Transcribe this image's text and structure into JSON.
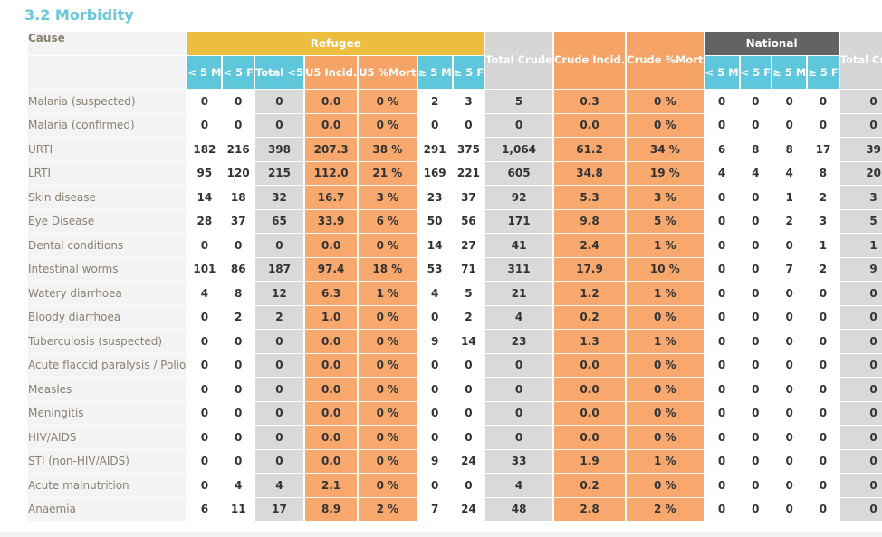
{
  "section_title": "3.2 Morbidity",
  "headers": {
    "cause": "Cause",
    "refugee": "Refugee",
    "national": "National",
    "refugee_sub": [
      "< 5 M",
      "< 5 F",
      "Total <5",
      "U5 Incid.",
      "U5 %Mort",
      "≥ 5 M",
      "≥ 5 F"
    ],
    "total_crude": "Total Crude",
    "crude_incid": "Crude Incid.",
    "crude_mort": "Crude %Mort",
    "national_sub": [
      "< 5 M",
      "< 5 F",
      "≥ 5 M",
      "≥ 5 F"
    ],
    "national_total": "Total Crude"
  },
  "colors": {
    "title": "#6cc5da",
    "refugee_group": "#ecbd3f",
    "national_group": "#636363",
    "sub_header": "#5ec7dc",
    "rate_header": "#f5a367",
    "total_header": "#d6d6d6",
    "rate_cell": "#f8a86d",
    "total_cell": "#d9d9d9"
  },
  "rows": [
    {
      "cause": "Malaria (suspected)",
      "r_u5m": "0",
      "r_u5f": "0",
      "r_tot5": "0",
      "r_u5inc": "0.0",
      "r_u5mort": "0 %",
      "r_o5m": "2",
      "r_o5f": "3",
      "tot_crude": "5",
      "crude_inc": "0.3",
      "crude_mort": "0 %",
      "n_u5m": "0",
      "n_u5f": "0",
      "n_o5m": "0",
      "n_o5f": "0",
      "n_tot": "0"
    },
    {
      "cause": "Malaria (confirmed)",
      "r_u5m": "0",
      "r_u5f": "0",
      "r_tot5": "0",
      "r_u5inc": "0.0",
      "r_u5mort": "0 %",
      "r_o5m": "0",
      "r_o5f": "0",
      "tot_crude": "0",
      "crude_inc": "0.0",
      "crude_mort": "0 %",
      "n_u5m": "0",
      "n_u5f": "0",
      "n_o5m": "0",
      "n_o5f": "0",
      "n_tot": "0"
    },
    {
      "cause": "URTI",
      "r_u5m": "182",
      "r_u5f": "216",
      "r_tot5": "398",
      "r_u5inc": "207.3",
      "r_u5mort": "38 %",
      "r_o5m": "291",
      "r_o5f": "375",
      "tot_crude": "1,064",
      "crude_inc": "61.2",
      "crude_mort": "34 %",
      "n_u5m": "6",
      "n_u5f": "8",
      "n_o5m": "8",
      "n_o5f": "17",
      "n_tot": "39"
    },
    {
      "cause": "LRTI",
      "r_u5m": "95",
      "r_u5f": "120",
      "r_tot5": "215",
      "r_u5inc": "112.0",
      "r_u5mort": "21 %",
      "r_o5m": "169",
      "r_o5f": "221",
      "tot_crude": "605",
      "crude_inc": "34.8",
      "crude_mort": "19 %",
      "n_u5m": "4",
      "n_u5f": "4",
      "n_o5m": "4",
      "n_o5f": "8",
      "n_tot": "20"
    },
    {
      "cause": "Skin disease",
      "r_u5m": "14",
      "r_u5f": "18",
      "r_tot5": "32",
      "r_u5inc": "16.7",
      "r_u5mort": "3 %",
      "r_o5m": "23",
      "r_o5f": "37",
      "tot_crude": "92",
      "crude_inc": "5.3",
      "crude_mort": "3 %",
      "n_u5m": "0",
      "n_u5f": "0",
      "n_o5m": "1",
      "n_o5f": "2",
      "n_tot": "3"
    },
    {
      "cause": "Eye Disease",
      "r_u5m": "28",
      "r_u5f": "37",
      "r_tot5": "65",
      "r_u5inc": "33.9",
      "r_u5mort": "6 %",
      "r_o5m": "50",
      "r_o5f": "56",
      "tot_crude": "171",
      "crude_inc": "9.8",
      "crude_mort": "5 %",
      "n_u5m": "0",
      "n_u5f": "0",
      "n_o5m": "2",
      "n_o5f": "3",
      "n_tot": "5"
    },
    {
      "cause": "Dental conditions",
      "r_u5m": "0",
      "r_u5f": "0",
      "r_tot5": "0",
      "r_u5inc": "0.0",
      "r_u5mort": "0 %",
      "r_o5m": "14",
      "r_o5f": "27",
      "tot_crude": "41",
      "crude_inc": "2.4",
      "crude_mort": "1 %",
      "n_u5m": "0",
      "n_u5f": "0",
      "n_o5m": "0",
      "n_o5f": "1",
      "n_tot": "1"
    },
    {
      "cause": "Intestinal worms",
      "r_u5m": "101",
      "r_u5f": "86",
      "r_tot5": "187",
      "r_u5inc": "97.4",
      "r_u5mort": "18 %",
      "r_o5m": "53",
      "r_o5f": "71",
      "tot_crude": "311",
      "crude_inc": "17.9",
      "crude_mort": "10 %",
      "n_u5m": "0",
      "n_u5f": "0",
      "n_o5m": "7",
      "n_o5f": "2",
      "n_tot": "9"
    },
    {
      "cause": "Watery diarrhoea",
      "r_u5m": "4",
      "r_u5f": "8",
      "r_tot5": "12",
      "r_u5inc": "6.3",
      "r_u5mort": "1 %",
      "r_o5m": "4",
      "r_o5f": "5",
      "tot_crude": "21",
      "crude_inc": "1.2",
      "crude_mort": "1 %",
      "n_u5m": "0",
      "n_u5f": "0",
      "n_o5m": "0",
      "n_o5f": "0",
      "n_tot": "0"
    },
    {
      "cause": "Bloody diarrhoea",
      "r_u5m": "0",
      "r_u5f": "2",
      "r_tot5": "2",
      "r_u5inc": "1.0",
      "r_u5mort": "0 %",
      "r_o5m": "0",
      "r_o5f": "2",
      "tot_crude": "4",
      "crude_inc": "0.2",
      "crude_mort": "0 %",
      "n_u5m": "0",
      "n_u5f": "0",
      "n_o5m": "0",
      "n_o5f": "0",
      "n_tot": "0"
    },
    {
      "cause": "Tuberculosis (suspected)",
      "r_u5m": "0",
      "r_u5f": "0",
      "r_tot5": "0",
      "r_u5inc": "0.0",
      "r_u5mort": "0 %",
      "r_o5m": "9",
      "r_o5f": "14",
      "tot_crude": "23",
      "crude_inc": "1.3",
      "crude_mort": "1 %",
      "n_u5m": "0",
      "n_u5f": "0",
      "n_o5m": "0",
      "n_o5f": "0",
      "n_tot": "0"
    },
    {
      "cause": "Acute flaccid paralysis / Polio",
      "r_u5m": "0",
      "r_u5f": "0",
      "r_tot5": "0",
      "r_u5inc": "0.0",
      "r_u5mort": "0 %",
      "r_o5m": "0",
      "r_o5f": "0",
      "tot_crude": "0",
      "crude_inc": "0.0",
      "crude_mort": "0 %",
      "n_u5m": "0",
      "n_u5f": "0",
      "n_o5m": "0",
      "n_o5f": "0",
      "n_tot": "0"
    },
    {
      "cause": "Measles",
      "r_u5m": "0",
      "r_u5f": "0",
      "r_tot5": "0",
      "r_u5inc": "0.0",
      "r_u5mort": "0 %",
      "r_o5m": "0",
      "r_o5f": "0",
      "tot_crude": "0",
      "crude_inc": "0.0",
      "crude_mort": "0 %",
      "n_u5m": "0",
      "n_u5f": "0",
      "n_o5m": "0",
      "n_o5f": "0",
      "n_tot": "0"
    },
    {
      "cause": "Meningitis",
      "r_u5m": "0",
      "r_u5f": "0",
      "r_tot5": "0",
      "r_u5inc": "0.0",
      "r_u5mort": "0 %",
      "r_o5m": "0",
      "r_o5f": "0",
      "tot_crude": "0",
      "crude_inc": "0.0",
      "crude_mort": "0 %",
      "n_u5m": "0",
      "n_u5f": "0",
      "n_o5m": "0",
      "n_o5f": "0",
      "n_tot": "0"
    },
    {
      "cause": "HIV/AIDS",
      "r_u5m": "0",
      "r_u5f": "0",
      "r_tot5": "0",
      "r_u5inc": "0.0",
      "r_u5mort": "0 %",
      "r_o5m": "0",
      "r_o5f": "0",
      "tot_crude": "0",
      "crude_inc": "0.0",
      "crude_mort": "0 %",
      "n_u5m": "0",
      "n_u5f": "0",
      "n_o5m": "0",
      "n_o5f": "0",
      "n_tot": "0"
    },
    {
      "cause": "STI (non-HIV/AIDS)",
      "r_u5m": "0",
      "r_u5f": "0",
      "r_tot5": "0",
      "r_u5inc": "0.0",
      "r_u5mort": "0 %",
      "r_o5m": "9",
      "r_o5f": "24",
      "tot_crude": "33",
      "crude_inc": "1.9",
      "crude_mort": "1 %",
      "n_u5m": "0",
      "n_u5f": "0",
      "n_o5m": "0",
      "n_o5f": "0",
      "n_tot": "0"
    },
    {
      "cause": "Acute malnutrition",
      "r_u5m": "0",
      "r_u5f": "4",
      "r_tot5": "4",
      "r_u5inc": "2.1",
      "r_u5mort": "0 %",
      "r_o5m": "0",
      "r_o5f": "0",
      "tot_crude": "4",
      "crude_inc": "0.2",
      "crude_mort": "0 %",
      "n_u5m": "0",
      "n_u5f": "0",
      "n_o5m": "0",
      "n_o5f": "0",
      "n_tot": "0"
    },
    {
      "cause": "Anaemia",
      "r_u5m": "6",
      "r_u5f": "11",
      "r_tot5": "17",
      "r_u5inc": "8.9",
      "r_u5mort": "2 %",
      "r_o5m": "7",
      "r_o5f": "24",
      "tot_crude": "48",
      "crude_inc": "2.8",
      "crude_mort": "2 %",
      "n_u5m": "0",
      "n_u5f": "0",
      "n_o5m": "0",
      "n_o5f": "0",
      "n_tot": "0"
    }
  ]
}
